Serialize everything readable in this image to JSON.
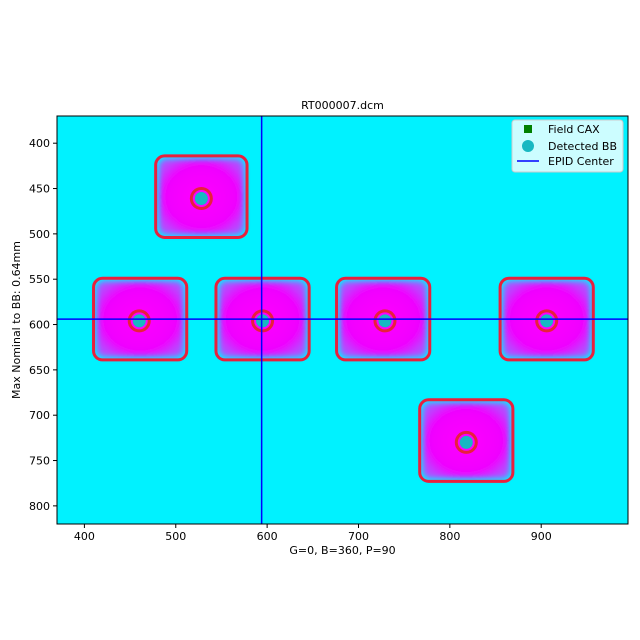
{
  "chart_data": {
    "type": "image",
    "title": "RT000007.dcm",
    "xlabel": "G=0, B=360, P=90",
    "ylabel": "Max Nominal to BB: 0.64mm",
    "xlim": [
      370,
      995
    ],
    "ylim": [
      820,
      370
    ],
    "x_ticks": [
      400,
      500,
      600,
      700,
      800,
      900
    ],
    "y_ticks": [
      400,
      450,
      500,
      550,
      600,
      650,
      700,
      750,
      800
    ],
    "colors": {
      "background": "#00f2ff",
      "field": "#ff00ff",
      "edge": "#e8203c",
      "bb": "#17b8c2",
      "cax": "#008000",
      "epid": "#0000ff"
    },
    "epid_center": {
      "x": 594,
      "y": 594
    },
    "fields": [
      {
        "cx": 528,
        "cy": 459,
        "w": 100,
        "h": 90,
        "bb_x": 528,
        "bb_y": 461
      },
      {
        "cx": 461,
        "cy": 594,
        "w": 102,
        "h": 90,
        "bb_x": 460,
        "bb_y": 596
      },
      {
        "cx": 595,
        "cy": 594,
        "w": 102,
        "h": 90,
        "bb_x": 595,
        "bb_y": 596
      },
      {
        "cx": 727,
        "cy": 594,
        "w": 102,
        "h": 90,
        "bb_x": 729,
        "bb_y": 596
      },
      {
        "cx": 906,
        "cy": 594,
        "w": 102,
        "h": 90,
        "bb_x": 906,
        "bb_y": 596
      },
      {
        "cx": 818,
        "cy": 728,
        "w": 102,
        "h": 90,
        "bb_x": 818,
        "bb_y": 730
      }
    ],
    "legend": {
      "position": "top-right",
      "entries": [
        {
          "label": "Field CAX",
          "marker": "square",
          "color": "#008000"
        },
        {
          "label": "Detected BB",
          "marker": "circle",
          "color": "#17b8c2"
        },
        {
          "label": "EPID Center",
          "marker": "line",
          "color": "#0000ff"
        }
      ]
    }
  }
}
